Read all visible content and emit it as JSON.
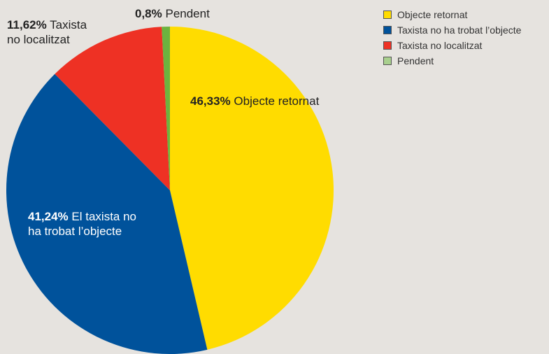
{
  "chart_data": {
    "type": "pie",
    "categories": [
      "Objecte retornat",
      "Taxista no ha trobat l’objecte",
      "Taxista no localitzat",
      "Pendent"
    ],
    "values": [
      46.33,
      41.24,
      11.62,
      0.8
    ],
    "colors": [
      "#ffdc00",
      "#00529b",
      "#ee3124",
      "#6cb33f"
    ],
    "legend_colors": [
      "#ffdc00",
      "#00529b",
      "#ee3124",
      "#a9d08e"
    ],
    "start": "12 o'clock",
    "direction": "clockwise",
    "legend_placement": "top-right",
    "slice_labels": [
      {
        "pct": "46,33%",
        "text": "Objecte retornat"
      },
      {
        "pct": "41,24%",
        "text": "El taxista no",
        "text2": "ha trobat l’objecte"
      },
      {
        "pct": "11,62%",
        "text": "Taxista",
        "text2": "no localitzat"
      },
      {
        "pct": "0,8%",
        "text": "Pendent"
      }
    ]
  },
  "legend": {
    "items": [
      {
        "label": "Objecte retornat",
        "color": "#ffdc00"
      },
      {
        "label": "Taxista no ha trobat l’objecte",
        "color": "#00529b"
      },
      {
        "label": "Taxista no localitzat",
        "color": "#ee3124"
      },
      {
        "label": "Pendent",
        "color": "#a9d08e"
      }
    ]
  }
}
